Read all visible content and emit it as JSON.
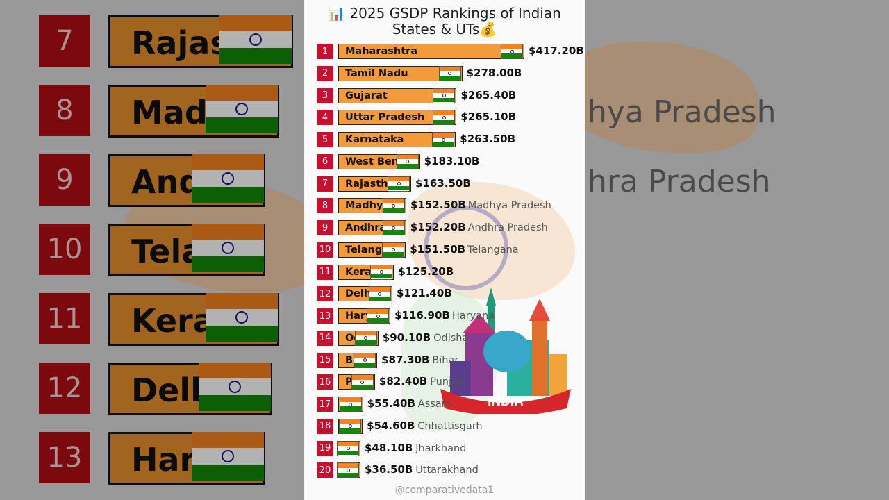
{
  "title": "📊 2025 GSDP Rankings of Indian States & UTs💰",
  "credit": "@comparativedata1",
  "logo_text": "INDIA",
  "colors": {
    "bar": "#f39a3b",
    "rank_box": "#c8102e",
    "flag_saffron": "#f58220",
    "flag_green": "#138808",
    "chakra": "#1a1a8c"
  },
  "rows": [
    {
      "rank": "1",
      "bar_label": "Maharashtra",
      "value_label": "$417.20B",
      "name": ""
    },
    {
      "rank": "2",
      "bar_label": "Tamil Nadu",
      "value_label": "$278.00B",
      "name": ""
    },
    {
      "rank": "3",
      "bar_label": "Gujarat",
      "value_label": "$265.40B",
      "name": ""
    },
    {
      "rank": "4",
      "bar_label": "Uttar Pradesh",
      "value_label": "$265.10B",
      "name": ""
    },
    {
      "rank": "5",
      "bar_label": "Karnataka",
      "value_label": "$263.50B",
      "name": ""
    },
    {
      "rank": "6",
      "bar_label": "West Beng",
      "value_label": "$183.10B",
      "name": ""
    },
    {
      "rank": "7",
      "bar_label": "Rajastha",
      "value_label": "$163.50B",
      "name": ""
    },
    {
      "rank": "8",
      "bar_label": "Madhya",
      "value_label": "$152.50B",
      "name": "Madhya Pradesh"
    },
    {
      "rank": "9",
      "bar_label": "Andhra",
      "value_label": "$152.20B",
      "name": "Andhra Pradesh"
    },
    {
      "rank": "10",
      "bar_label": "Telanga",
      "value_label": "$151.50B",
      "name": "Telangana"
    },
    {
      "rank": "11",
      "bar_label": "Keral",
      "value_label": "$125.20B",
      "name": ""
    },
    {
      "rank": "12",
      "bar_label": "Delh",
      "value_label": "$121.40B",
      "name": ""
    },
    {
      "rank": "13",
      "bar_label": "Hary",
      "value_label": "$116.90B",
      "name": "Haryana"
    },
    {
      "rank": "14",
      "bar_label": "Od",
      "value_label": "$90.10B",
      "name": "Odisha"
    },
    {
      "rank": "15",
      "bar_label": "Bi",
      "value_label": "$87.30B",
      "name": "Bihar"
    },
    {
      "rank": "16",
      "bar_label": "P",
      "value_label": "$82.40B",
      "name": "Punjab"
    },
    {
      "rank": "17",
      "bar_label": "",
      "value_label": "$55.40B",
      "name": "Assam"
    },
    {
      "rank": "18",
      "bar_label": "",
      "value_label": "$54.60B",
      "name": "Chhattisgarh"
    },
    {
      "rank": "19",
      "bar_label": "",
      "value_label": "$48.10B",
      "name": "Jharkhand"
    },
    {
      "rank": "20",
      "bar_label": "",
      "value_label": "$36.50B",
      "name": "Uttarakhand"
    }
  ],
  "background_left": [
    {
      "rank": "7",
      "label": "Rajastha"
    },
    {
      "rank": "8",
      "label": "Madhya"
    },
    {
      "rank": "9",
      "label": "Andhra"
    },
    {
      "rank": "10",
      "label": "Telanga"
    },
    {
      "rank": "11",
      "label": "Keral"
    },
    {
      "rank": "12",
      "label": "Delh"
    },
    {
      "rank": "13",
      "label": "Hary"
    }
  ],
  "background_right": [
    "hya Pradesh",
    "hra Pradesh"
  ],
  "chart_data": {
    "type": "bar",
    "orientation": "horizontal",
    "title": "2025 GSDP Rankings of Indian States & UTs",
    "categories": [
      "Maharashtra",
      "Tamil Nadu",
      "Gujarat",
      "Uttar Pradesh",
      "Karnataka",
      "West Bengal",
      "Rajasthan",
      "Madhya Pradesh",
      "Andhra Pradesh",
      "Telangana",
      "Kerala",
      "Delhi",
      "Haryana",
      "Odisha",
      "Bihar",
      "Punjab",
      "Assam",
      "Chhattisgarh",
      "Jharkhand",
      "Uttarakhand"
    ],
    "values": [
      417.2,
      278.0,
      265.4,
      265.1,
      263.5,
      183.1,
      163.5,
      152.5,
      152.2,
      151.5,
      125.2,
      121.4,
      116.9,
      90.1,
      87.3,
      82.4,
      55.4,
      54.6,
      48.1,
      36.5
    ],
    "unit": "$B"
  }
}
